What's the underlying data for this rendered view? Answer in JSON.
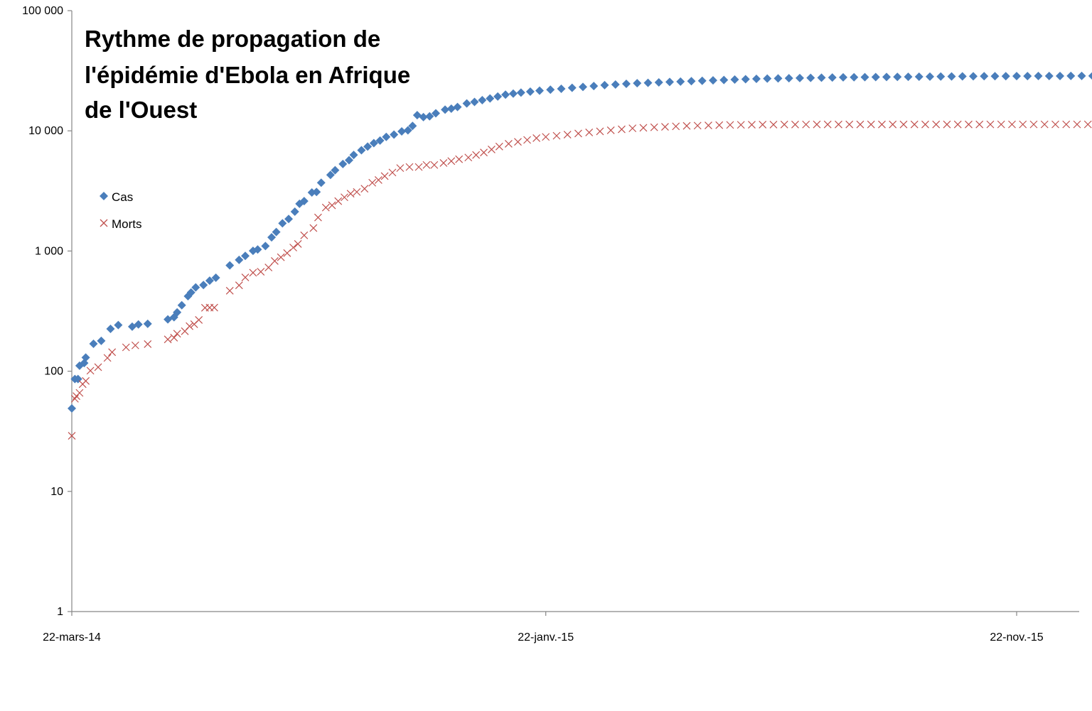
{
  "chart_data": {
    "type": "scatter",
    "title_lines": [
      "Rythme de propagation de",
      "l'épidémie d'Ebola en Afrique",
      "de l'Ouest"
    ],
    "xlabel": "",
    "ylabel": "",
    "y_scale": "log",
    "ylim": [
      1,
      100000
    ],
    "y_ticks": [
      {
        "value": 1,
        "label": "1"
      },
      {
        "value": 10,
        "label": "10"
      },
      {
        "value": 100,
        "label": "100"
      },
      {
        "value": 1000,
        "label": "1 000"
      },
      {
        "value": 10000,
        "label": "10 000"
      },
      {
        "value": 100000,
        "label": "100 000"
      }
    ],
    "xlim": [
      "2014-03-22",
      "2016-01-25"
    ],
    "x_ticks": [
      {
        "value": "2014-03-22",
        "label": "22-mars-14"
      },
      {
        "value": "2015-01-22",
        "label": "22-janv.-15"
      },
      {
        "value": "2015-11-22",
        "label": "22-nov.-15"
      }
    ],
    "grid": false,
    "legend_position": "left",
    "series": [
      {
        "name": "Cas",
        "marker": "diamond",
        "color": "#4a7ebb",
        "points": [
          [
            "2014-03-22",
            49
          ],
          [
            "2014-03-24",
            86
          ],
          [
            "2014-03-26",
            86
          ],
          [
            "2014-03-27",
            111
          ],
          [
            "2014-03-30",
            117
          ],
          [
            "2014-03-31",
            130
          ],
          [
            "2014-04-05",
            169
          ],
          [
            "2014-04-10",
            179
          ],
          [
            "2014-04-16",
            225
          ],
          [
            "2014-04-21",
            242
          ],
          [
            "2014-04-30",
            235
          ],
          [
            "2014-05-04",
            245
          ],
          [
            "2014-05-10",
            248
          ],
          [
            "2014-05-23",
            270
          ],
          [
            "2014-05-27",
            281
          ],
          [
            "2014-05-29",
            309
          ],
          [
            "2014-06-01",
            354
          ],
          [
            "2014-06-05",
            421
          ],
          [
            "2014-06-07",
            452
          ],
          [
            "2014-06-10",
            498
          ],
          [
            "2014-06-15",
            521
          ],
          [
            "2014-06-19",
            567
          ],
          [
            "2014-06-23",
            599
          ],
          [
            "2014-07-02",
            759
          ],
          [
            "2014-07-08",
            844
          ],
          [
            "2014-07-12",
            911
          ],
          [
            "2014-07-17",
            1004
          ],
          [
            "2014-07-20",
            1030
          ],
          [
            "2014-07-25",
            1100
          ],
          [
            "2014-07-29",
            1300
          ],
          [
            "2014-08-01",
            1440
          ],
          [
            "2014-08-05",
            1700
          ],
          [
            "2014-08-09",
            1848
          ],
          [
            "2014-08-13",
            2127
          ],
          [
            "2014-08-16",
            2473
          ],
          [
            "2014-08-19",
            2600
          ],
          [
            "2014-08-24",
            3069
          ],
          [
            "2014-08-27",
            3100
          ],
          [
            "2014-08-30",
            3700
          ],
          [
            "2014-09-05",
            4300
          ],
          [
            "2014-09-08",
            4700
          ],
          [
            "2014-09-13",
            5300
          ],
          [
            "2014-09-17",
            5700
          ],
          [
            "2014-09-20",
            6300
          ],
          [
            "2014-09-25",
            6900
          ],
          [
            "2014-09-29",
            7400
          ],
          [
            "2014-10-03",
            7900
          ],
          [
            "2014-10-07",
            8300
          ],
          [
            "2014-10-11",
            8900
          ],
          [
            "2014-10-16",
            9300
          ],
          [
            "2014-10-21",
            9900
          ],
          [
            "2014-10-25",
            10100
          ],
          [
            "2014-10-28",
            11000
          ],
          [
            "2014-10-31",
            13500
          ],
          [
            "2014-11-04",
            13000
          ],
          [
            "2014-11-08",
            13200
          ],
          [
            "2014-11-12",
            14000
          ],
          [
            "2014-11-18",
            15000
          ],
          [
            "2014-11-22",
            15300
          ],
          [
            "2014-11-26",
            15800
          ],
          [
            "2014-12-02",
            16900
          ],
          [
            "2014-12-07",
            17400
          ],
          [
            "2014-12-12",
            18000
          ],
          [
            "2014-12-17",
            18600
          ],
          [
            "2014-12-22",
            19300
          ],
          [
            "2014-12-27",
            20000
          ],
          [
            "2015-01-01",
            20400
          ],
          [
            "2015-01-06",
            20800
          ],
          [
            "2015-01-12",
            21200
          ],
          [
            "2015-01-18",
            21600
          ],
          [
            "2015-01-25",
            22000
          ],
          [
            "2015-02-01",
            22400
          ],
          [
            "2015-02-08",
            22800
          ],
          [
            "2015-02-15",
            23200
          ],
          [
            "2015-02-22",
            23600
          ],
          [
            "2015-03-01",
            24000
          ],
          [
            "2015-03-08",
            24300
          ],
          [
            "2015-03-15",
            24600
          ],
          [
            "2015-03-22",
            24900
          ],
          [
            "2015-03-29",
            25100
          ],
          [
            "2015-04-05",
            25300
          ],
          [
            "2015-04-12",
            25500
          ],
          [
            "2015-04-19",
            25700
          ],
          [
            "2015-04-26",
            25900
          ],
          [
            "2015-05-03",
            26100
          ],
          [
            "2015-05-10",
            26300
          ],
          [
            "2015-05-17",
            26500
          ],
          [
            "2015-05-24",
            26700
          ],
          [
            "2015-05-31",
            26900
          ],
          [
            "2015-06-07",
            27100
          ],
          [
            "2015-06-14",
            27200
          ],
          [
            "2015-06-21",
            27300
          ],
          [
            "2015-06-28",
            27400
          ],
          [
            "2015-07-05",
            27500
          ],
          [
            "2015-07-12",
            27600
          ],
          [
            "2015-07-19",
            27700
          ],
          [
            "2015-07-26",
            27800
          ],
          [
            "2015-08-02",
            27850
          ],
          [
            "2015-08-09",
            27900
          ],
          [
            "2015-08-16",
            27950
          ],
          [
            "2015-08-23",
            28000
          ],
          [
            "2015-08-30",
            28050
          ],
          [
            "2015-09-06",
            28100
          ],
          [
            "2015-09-13",
            28150
          ],
          [
            "2015-09-20",
            28200
          ],
          [
            "2015-09-27",
            28250
          ],
          [
            "2015-10-04",
            28300
          ],
          [
            "2015-10-11",
            28350
          ],
          [
            "2015-10-18",
            28400
          ],
          [
            "2015-10-25",
            28450
          ],
          [
            "2015-11-01",
            28480
          ],
          [
            "2015-11-08",
            28500
          ],
          [
            "2015-11-15",
            28520
          ],
          [
            "2015-11-22",
            28540
          ],
          [
            "2015-11-29",
            28560
          ],
          [
            "2015-12-06",
            28580
          ],
          [
            "2015-12-13",
            28600
          ],
          [
            "2015-12-20",
            28610
          ],
          [
            "2015-12-27",
            28620
          ],
          [
            "2016-01-03",
            28630
          ],
          [
            "2016-01-10",
            28635
          ],
          [
            "2016-01-17",
            28637
          ],
          [
            "2016-01-22",
            28639
          ]
        ]
      },
      {
        "name": "Morts",
        "marker": "x",
        "color": "#c0504d",
        "points": [
          [
            "2014-03-22",
            29
          ],
          [
            "2014-03-24",
            59
          ],
          [
            "2014-03-25",
            62
          ],
          [
            "2014-03-27",
            66
          ],
          [
            "2014-03-29",
            78
          ],
          [
            "2014-03-31",
            83
          ],
          [
            "2014-04-03",
            101
          ],
          [
            "2014-04-08",
            108
          ],
          [
            "2014-04-14",
            129
          ],
          [
            "2014-04-17",
            144
          ],
          [
            "2014-04-26",
            158
          ],
          [
            "2014-05-02",
            164
          ],
          [
            "2014-05-10",
            168
          ],
          [
            "2014-05-23",
            184
          ],
          [
            "2014-05-27",
            190
          ],
          [
            "2014-05-29",
            205
          ],
          [
            "2014-06-03",
            215
          ],
          [
            "2014-06-06",
            237
          ],
          [
            "2014-06-09",
            246
          ],
          [
            "2014-06-12",
            267
          ],
          [
            "2014-06-16",
            337
          ],
          [
            "2014-06-19",
            338
          ],
          [
            "2014-06-22",
            338
          ],
          [
            "2014-07-02",
            467
          ],
          [
            "2014-07-08",
            518
          ],
          [
            "2014-07-12",
            603
          ],
          [
            "2014-07-17",
            660
          ],
          [
            "2014-07-22",
            672
          ],
          [
            "2014-07-27",
            730
          ],
          [
            "2014-07-31",
            826
          ],
          [
            "2014-08-04",
            887
          ],
          [
            "2014-08-08",
            961
          ],
          [
            "2014-08-12",
            1069
          ],
          [
            "2014-08-15",
            1145
          ],
          [
            "2014-08-19",
            1350
          ],
          [
            "2014-08-25",
            1552
          ],
          [
            "2014-08-28",
            1900
          ],
          [
            "2014-09-02",
            2300
          ],
          [
            "2014-09-06",
            2400
          ],
          [
            "2014-09-10",
            2600
          ],
          [
            "2014-09-14",
            2800
          ],
          [
            "2014-09-18",
            3000
          ],
          [
            "2014-09-22",
            3100
          ],
          [
            "2014-09-27",
            3300
          ],
          [
            "2014-10-02",
            3700
          ],
          [
            "2014-10-06",
            3900
          ],
          [
            "2014-10-10",
            4200
          ],
          [
            "2014-10-15",
            4500
          ],
          [
            "2014-10-20",
            4900
          ],
          [
            "2014-10-26",
            5000
          ],
          [
            "2014-11-01",
            5000
          ],
          [
            "2014-11-06",
            5200
          ],
          [
            "2014-11-11",
            5200
          ],
          [
            "2014-11-17",
            5400
          ],
          [
            "2014-11-22",
            5600
          ],
          [
            "2014-11-27",
            5800
          ],
          [
            "2014-12-03",
            6000
          ],
          [
            "2014-12-08",
            6300
          ],
          [
            "2014-12-13",
            6600
          ],
          [
            "2014-12-18",
            7000
          ],
          [
            "2014-12-23",
            7400
          ],
          [
            "2014-12-29",
            7800
          ],
          [
            "2015-01-04",
            8100
          ],
          [
            "2015-01-10",
            8400
          ],
          [
            "2015-01-16",
            8700
          ],
          [
            "2015-01-22",
            8900
          ],
          [
            "2015-01-29",
            9100
          ],
          [
            "2015-02-05",
            9300
          ],
          [
            "2015-02-12",
            9500
          ],
          [
            "2015-02-19",
            9700
          ],
          [
            "2015-02-26",
            9900
          ],
          [
            "2015-03-05",
            10100
          ],
          [
            "2015-03-12",
            10300
          ],
          [
            "2015-03-19",
            10500
          ],
          [
            "2015-03-26",
            10600
          ],
          [
            "2015-04-02",
            10700
          ],
          [
            "2015-04-09",
            10800
          ],
          [
            "2015-04-16",
            10900
          ],
          [
            "2015-04-23",
            11000
          ],
          [
            "2015-04-30",
            11050
          ],
          [
            "2015-05-07",
            11100
          ],
          [
            "2015-05-14",
            11150
          ],
          [
            "2015-05-21",
            11200
          ],
          [
            "2015-05-28",
            11220
          ],
          [
            "2015-06-04",
            11240
          ],
          [
            "2015-06-11",
            11260
          ],
          [
            "2015-06-18",
            11270
          ],
          [
            "2015-06-25",
            11280
          ],
          [
            "2015-07-02",
            11290
          ],
          [
            "2015-07-09",
            11295
          ],
          [
            "2015-07-16",
            11298
          ],
          [
            "2015-07-23",
            11300
          ],
          [
            "2015-07-30",
            11300
          ],
          [
            "2015-08-06",
            11301
          ],
          [
            "2015-08-13",
            11302
          ],
          [
            "2015-08-20",
            11303
          ],
          [
            "2015-08-27",
            11304
          ],
          [
            "2015-09-03",
            11305
          ],
          [
            "2015-09-10",
            11306
          ],
          [
            "2015-09-17",
            11307
          ],
          [
            "2015-09-24",
            11308
          ],
          [
            "2015-10-01",
            11309
          ],
          [
            "2015-10-08",
            11310
          ],
          [
            "2015-10-15",
            11311
          ],
          [
            "2015-10-22",
            11312
          ],
          [
            "2015-10-29",
            11312
          ],
          [
            "2015-11-05",
            11313
          ],
          [
            "2015-11-12",
            11313
          ],
          [
            "2015-11-19",
            11314
          ],
          [
            "2015-11-26",
            11314
          ],
          [
            "2015-12-03",
            11315
          ],
          [
            "2015-12-10",
            11315
          ],
          [
            "2015-12-17",
            11315
          ],
          [
            "2015-12-24",
            11315
          ],
          [
            "2015-12-31",
            11315
          ],
          [
            "2016-01-07",
            11315
          ],
          [
            "2016-01-14",
            11315
          ],
          [
            "2016-01-22",
            11315
          ]
        ]
      }
    ]
  }
}
